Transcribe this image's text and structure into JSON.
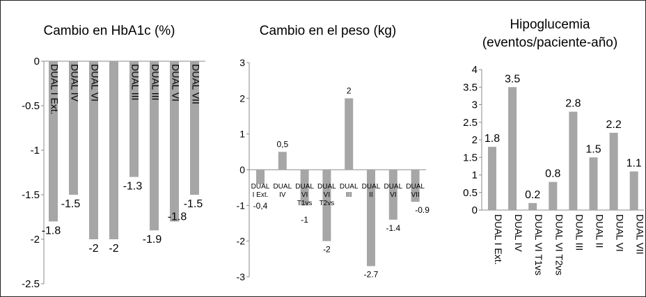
{
  "chart_data": [
    {
      "type": "bar",
      "title": "Cambio en HbA1c (%)",
      "categories": [
        "DUAL I Ext.",
        "DUAL IV",
        "DUAL VI",
        "",
        "DUAL III",
        "DUAL III",
        "DUAL VI",
        "DUAL VII"
      ],
      "values": [
        -1.8,
        -1.5,
        -2,
        -2,
        -1.3,
        -1.9,
        -1.8,
        -1.5
      ],
      "value_labels": [
        "-1.8",
        "-1.5",
        "-2",
        "-2",
        "-1.3",
        "-1.9",
        "-1.8",
        "-1.5"
      ],
      "ylim": [
        -2.5,
        0
      ],
      "yticks": [
        "0",
        "-0.5",
        "-1",
        "-1.5",
        "-2",
        "-2.5"
      ],
      "grid": false,
      "bar_color": "#a6a6a6"
    },
    {
      "type": "bar",
      "title": "Cambio en el peso (kg)",
      "categories": [
        "DUAL I Ext.",
        "DUAL IV",
        "DUAL VI T1vs",
        "DUAL VI T2vs",
        "DUAL III",
        "DUAL II",
        "DUAL VI",
        "DUAL VII"
      ],
      "values": [
        -0.4,
        0.5,
        -1,
        -2,
        2,
        -2.7,
        -1.4,
        -0.9
      ],
      "value_labels": [
        "-0,4",
        "0,5",
        "-1",
        "-2",
        "2",
        "-2.7",
        "-1.4",
        "-0.9"
      ],
      "ylim": [
        -3,
        3
      ],
      "yticks": [
        "3",
        "2",
        "1",
        "0",
        "-1",
        "-2",
        "-3"
      ],
      "grid": false,
      "bar_color": "#a6a6a6"
    },
    {
      "type": "bar",
      "title": "Hipoglucemia",
      "subtitle": "(eventos/paciente-año)",
      "categories": [
        "DUAL I Ext.",
        "DUAL IV",
        "DUAL VI T1vs",
        "DUAL VI T2vs",
        "DUAL III",
        "DUAL II",
        "DUAL VI",
        "DUAL VII"
      ],
      "values": [
        1.8,
        3.5,
        0.2,
        0.8,
        2.8,
        1.5,
        2.2,
        1.1
      ],
      "value_labels": [
        "1.8",
        "3.5",
        "0.2",
        "0.8",
        "2.8",
        "1.5",
        "2.2",
        "1.1"
      ],
      "ylim": [
        0,
        4
      ],
      "yticks": [
        "4",
        "3.5",
        "3",
        "2.5",
        "2",
        "1.5",
        "1",
        "0.5",
        "0"
      ],
      "grid": false,
      "bar_color": "#a6a6a6"
    }
  ]
}
